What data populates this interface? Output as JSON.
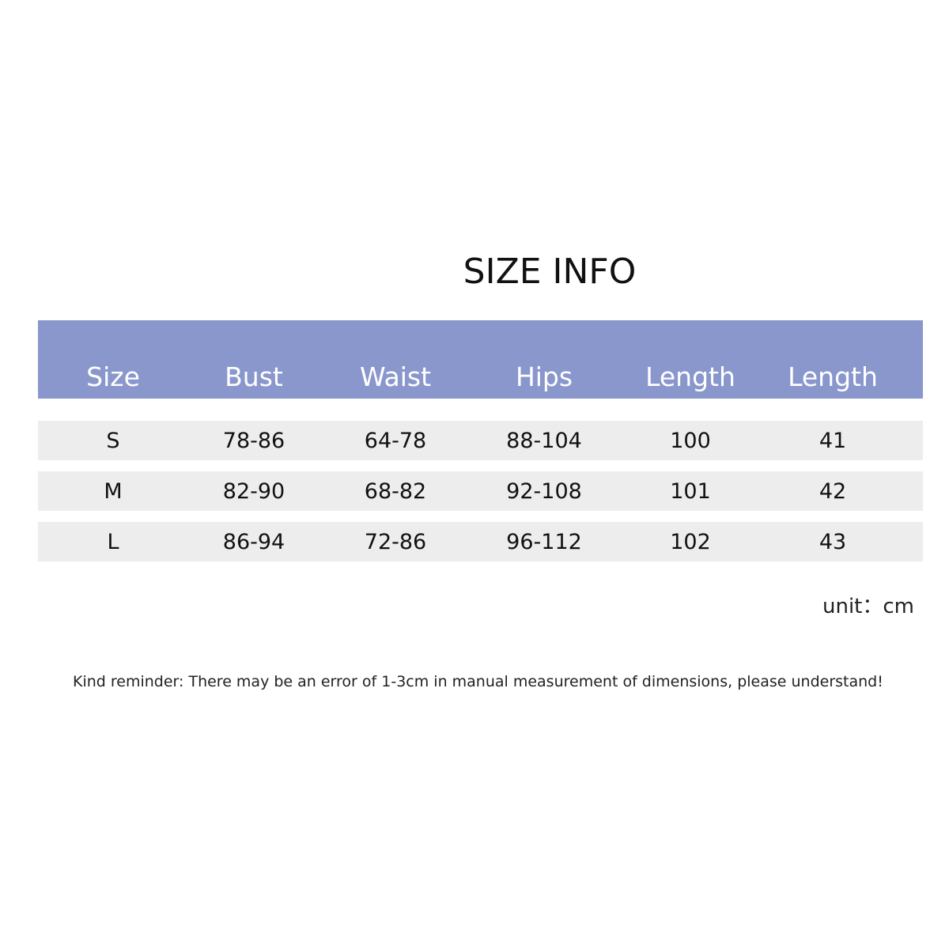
{
  "title": "SIZE INFO",
  "table": {
    "header": [
      "Size",
      "Bust",
      "Waist",
      "Hips",
      "Length",
      "Length"
    ],
    "rows": [
      [
        "S",
        "78-86",
        "64-78",
        "88-104",
        "100",
        "41"
      ],
      [
        "M",
        "82-90",
        "68-82",
        "92-108",
        "101",
        "42"
      ],
      [
        "L",
        "86-94",
        "72-86",
        "96-112",
        "102",
        "43"
      ]
    ]
  },
  "unit": "unit：cm",
  "reminder": "Kind reminder: There may be an error of 1-3cm in manual measurement of dimensions, please understand!"
}
